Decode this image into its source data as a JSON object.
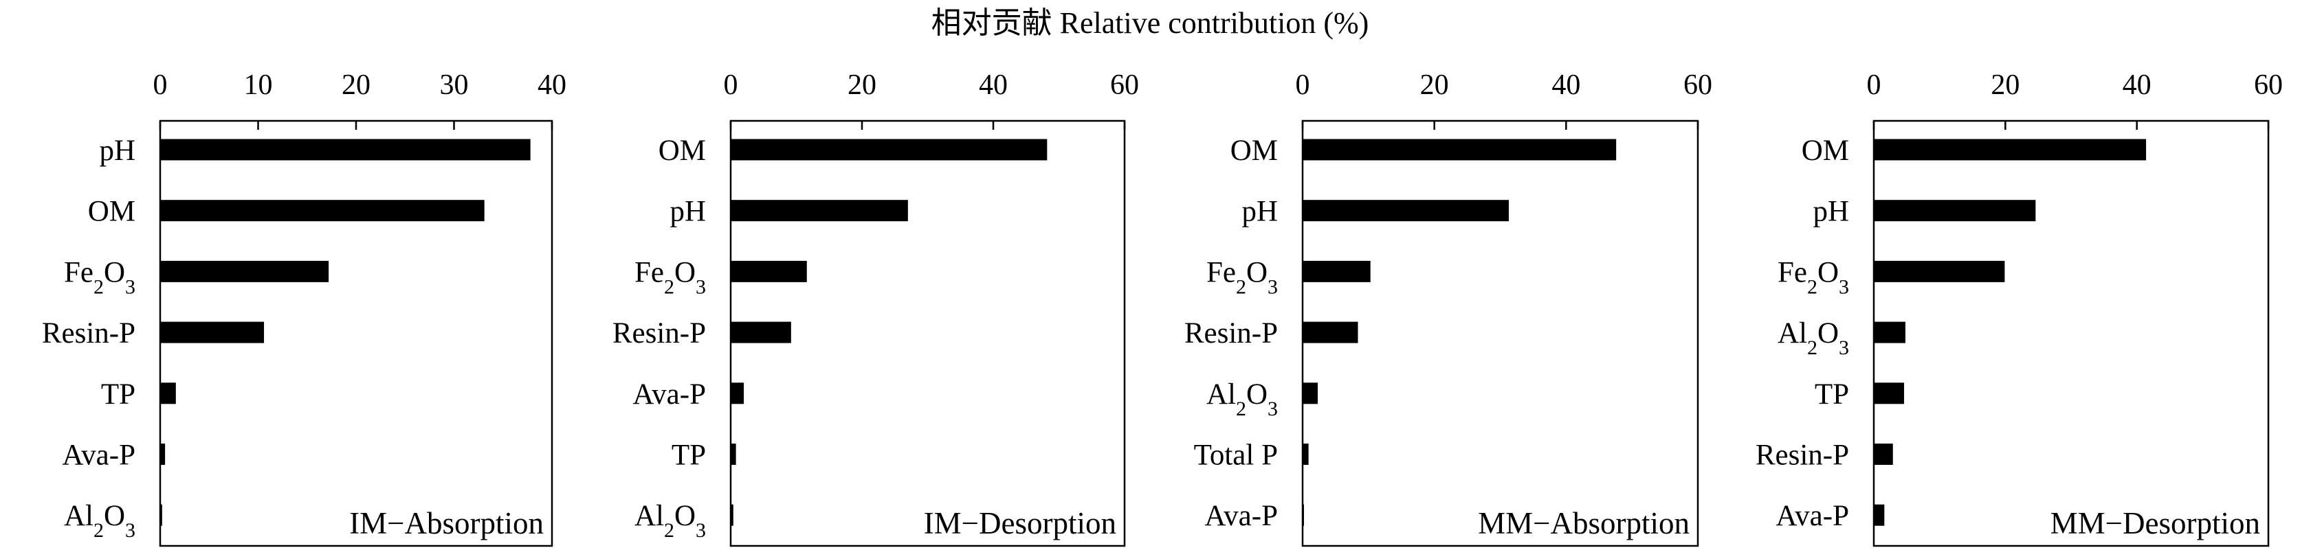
{
  "figure": {
    "x_title": "相对贡献 Relative contribution (%)"
  },
  "chart_data": [
    {
      "type": "bar",
      "orientation": "horizontal",
      "panel_label": "IM−Absorption",
      "categories": [
        "pH",
        "OM",
        "Fe2O3",
        "Resin-P",
        "TP",
        "Ava-P",
        "Al2O3"
      ],
      "values": [
        37.8,
        33.1,
        17.2,
        10.6,
        1.6,
        0.5,
        0.2
      ],
      "xlim": [
        0,
        40
      ],
      "xticks": [
        0,
        10,
        20,
        30,
        40
      ],
      "xlabel": "相对贡献 Relative contribution (%)",
      "grid": false,
      "bar_color": "#000000"
    },
    {
      "type": "bar",
      "orientation": "horizontal",
      "panel_label": "IM−Desorption",
      "categories": [
        "OM",
        "pH",
        "Fe2O3",
        "Resin-P",
        "Ava-P",
        "TP",
        "Al2O3"
      ],
      "values": [
        48.2,
        27.0,
        11.6,
        9.2,
        2.0,
        0.8,
        0.4
      ],
      "xlim": [
        0,
        60
      ],
      "xticks": [
        0,
        20,
        40,
        60
      ],
      "xlabel": "相对贡献 Relative contribution (%)",
      "grid": false,
      "bar_color": "#000000"
    },
    {
      "type": "bar",
      "orientation": "horizontal",
      "panel_label": "MM−Absorption",
      "categories": [
        "OM",
        "pH",
        "Fe2O3",
        "Resin-P",
        "Al2O3",
        "Total P",
        "Ava-P"
      ],
      "values": [
        47.6,
        31.3,
        10.3,
        8.4,
        2.3,
        0.9,
        0.2
      ],
      "xlim": [
        0,
        60
      ],
      "xticks": [
        0,
        20,
        40,
        60
      ],
      "xlabel": "相对贡献 Relative contribution (%)",
      "grid": false,
      "bar_color": "#000000"
    },
    {
      "type": "bar",
      "orientation": "horizontal",
      "panel_label": "MM−Desorption",
      "categories": [
        "OM",
        "pH",
        "Fe2O3",
        "Al2O3",
        "TP",
        "Resin-P",
        "Ava-P"
      ],
      "values": [
        41.4,
        24.6,
        19.9,
        4.8,
        4.6,
        2.9,
        1.6
      ],
      "xlim": [
        0,
        60
      ],
      "xticks": [
        0,
        20,
        40,
        60
      ],
      "xlabel": "相对贡献 Relative contribution (%)",
      "grid": false,
      "bar_color": "#000000"
    }
  ]
}
